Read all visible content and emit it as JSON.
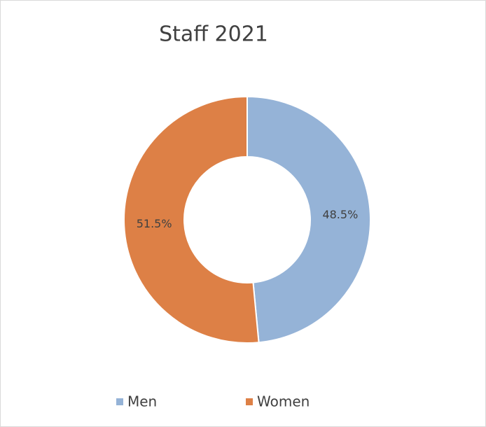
{
  "chart_data": {
    "type": "donut",
    "title": "Staff 2021",
    "categories": [
      "Men",
      "Women"
    ],
    "values": [
      48.5,
      51.5
    ],
    "value_labels": [
      "48.5%",
      "51.5%"
    ],
    "colors": [
      "#95b3d7",
      "#dd8046"
    ],
    "legend": "bottom"
  }
}
